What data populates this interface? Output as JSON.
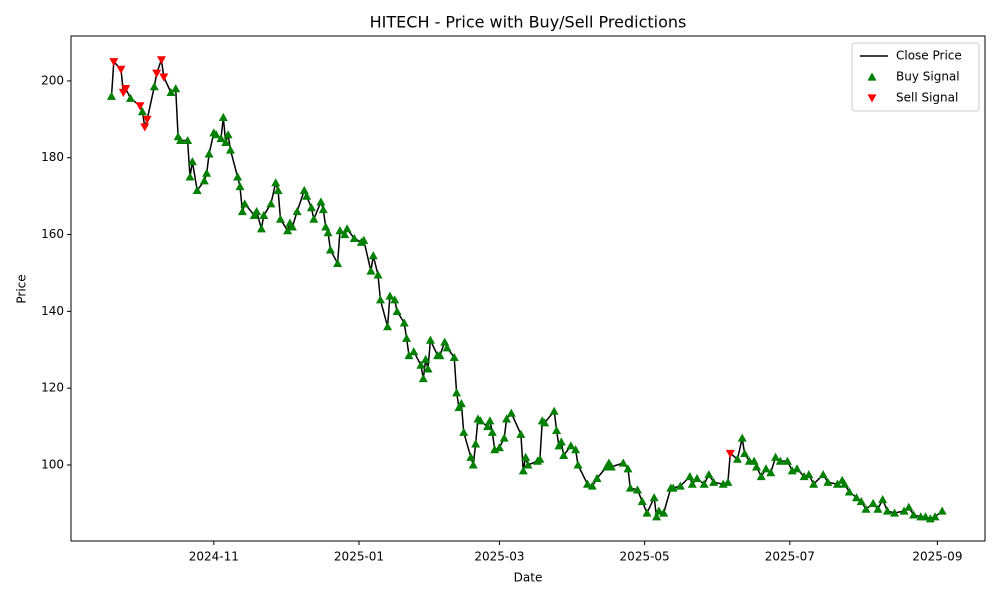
{
  "chart_data": {
    "type": "line",
    "title": "HITECH - Price with Buy/Sell Predictions",
    "x_label": "Date",
    "y_label": "Price",
    "xlim": [
      "2024-09-02",
      "2025-09-21"
    ],
    "ylim": [
      80.2,
      211.7
    ],
    "xticks": [
      {
        "value": "2024-11-01",
        "label": "2024-11"
      },
      {
        "value": "2025-01-01",
        "label": "2025-01"
      },
      {
        "value": "2025-03-01",
        "label": "2025-03"
      },
      {
        "value": "2025-05-01",
        "label": "2025-05"
      },
      {
        "value": "2025-07-01",
        "label": "2025-07"
      },
      {
        "value": "2025-09-01",
        "label": "2025-09"
      }
    ],
    "yticks": [
      100,
      120,
      140,
      160,
      180,
      200
    ],
    "grid": false,
    "legend": "upper right",
    "series": [
      {
        "name": "Close Price",
        "type": "line",
        "color": "#000000",
        "x": [
          "2024-09-19",
          "2024-09-20",
          "2024-09-23",
          "2024-09-24",
          "2024-09-25",
          "2024-09-27",
          "2024-10-01",
          "2024-10-02",
          "2024-10-03",
          "2024-10-04",
          "2024-10-07",
          "2024-10-08",
          "2024-10-10",
          "2024-10-11",
          "2024-10-14",
          "2024-10-16",
          "2024-10-17",
          "2024-10-18",
          "2024-10-21",
          "2024-10-22",
          "2024-10-23",
          "2024-10-25",
          "2024-10-28",
          "2024-10-29",
          "2024-10-30",
          "2024-11-01",
          "2024-11-02",
          "2024-11-04",
          "2024-11-05",
          "2024-11-06",
          "2024-11-07",
          "2024-11-08",
          "2024-11-11",
          "2024-11-12",
          "2024-11-13",
          "2024-11-14",
          "2024-11-18",
          "2024-11-19",
          "2024-11-21",
          "2024-11-22",
          "2024-11-25",
          "2024-11-27",
          "2024-11-28",
          "2024-11-29",
          "2024-12-02",
          "2024-12-03",
          "2024-12-04",
          "2024-12-06",
          "2024-12-09",
          "2024-12-10",
          "2024-12-12",
          "2024-12-13",
          "2024-12-16",
          "2024-12-17",
          "2024-12-18",
          "2024-12-19",
          "2024-12-20",
          "2024-12-23",
          "2024-12-24",
          "2024-12-26",
          "2024-12-27",
          "2024-12-30",
          "2025-01-02",
          "2025-01-03",
          "2025-01-06",
          "2025-01-07",
          "2025-01-09",
          "2025-01-10",
          "2025-01-13",
          "2025-01-14",
          "2025-01-16",
          "2025-01-17",
          "2025-01-20",
          "2025-01-21",
          "2025-01-22",
          "2025-01-24",
          "2025-01-27",
          "2025-01-28",
          "2025-01-29",
          "2025-01-30",
          "2025-01-31",
          "2025-02-03",
          "2025-02-04",
          "2025-02-06",
          "2025-02-07",
          "2025-02-10",
          "2025-02-11",
          "2025-02-12",
          "2025-02-13",
          "2025-02-14",
          "2025-02-17",
          "2025-02-18",
          "2025-02-19",
          "2025-02-20",
          "2025-02-21",
          "2025-02-24",
          "2025-02-25",
          "2025-02-26",
          "2025-02-27",
          "2025-03-01",
          "2025-03-03",
          "2025-03-04",
          "2025-03-06",
          "2025-03-10",
          "2025-03-11",
          "2025-03-12",
          "2025-03-13",
          "2025-03-17",
          "2025-03-18",
          "2025-03-19",
          "2025-03-20",
          "2025-03-24",
          "2025-03-25",
          "2025-03-26",
          "2025-03-27",
          "2025-03-28",
          "2025-03-31",
          "2025-04-02",
          "2025-04-03",
          "2025-04-07",
          "2025-04-09",
          "2025-04-11",
          "2025-04-15",
          "2025-04-16",
          "2025-04-17",
          "2025-04-22",
          "2025-04-24",
          "2025-04-25",
          "2025-04-28",
          "2025-04-30",
          "2025-05-02",
          "2025-05-05",
          "2025-05-06",
          "2025-05-07",
          "2025-05-09",
          "2025-05-12",
          "2025-05-13",
          "2025-05-16",
          "2025-05-20",
          "2025-05-21",
          "2025-05-23",
          "2025-05-26",
          "2025-05-28",
          "2025-05-30",
          "2025-06-03",
          "2025-06-05",
          "2025-06-06",
          "2025-06-09",
          "2025-06-11",
          "2025-06-12",
          "2025-06-14",
          "2025-06-16",
          "2025-06-17",
          "2025-06-19",
          "2025-06-21",
          "2025-06-23",
          "2025-06-25",
          "2025-06-27",
          "2025-06-30",
          "2025-07-02",
          "2025-07-04",
          "2025-07-07",
          "2025-07-09",
          "2025-07-11",
          "2025-07-15",
          "2025-07-17",
          "2025-07-21",
          "2025-07-23",
          "2025-07-24",
          "2025-07-26",
          "2025-07-29",
          "2025-07-31",
          "2025-08-02",
          "2025-08-05",
          "2025-08-07",
          "2025-08-09",
          "2025-08-11",
          "2025-08-14",
          "2025-08-18",
          "2025-08-20",
          "2025-08-22",
          "2025-08-25",
          "2025-08-27",
          "2025-08-29",
          "2025-08-31",
          "2025-09-03"
        ],
        "values": [
          196,
          205,
          203,
          197,
          198,
          195.5,
          193.5,
          192,
          188,
          190,
          198.5,
          202,
          205.5,
          201,
          197,
          198,
          185.5,
          184.5,
          184.5,
          175,
          179,
          171.5,
          174,
          176,
          181,
          186.5,
          186,
          185,
          190.5,
          184,
          186,
          182,
          175,
          172.5,
          166,
          168,
          165,
          166,
          161.5,
          165,
          168,
          173.5,
          171.5,
          164,
          161,
          163,
          162,
          166,
          171.5,
          170,
          167,
          164,
          168.5,
          166.5,
          162,
          160.5,
          156,
          152.5,
          161,
          160,
          161.5,
          159,
          158,
          158.5,
          150.5,
          154.5,
          149.5,
          143,
          136,
          144,
          143,
          140,
          137,
          133,
          128.5,
          129.5,
          126,
          122.5,
          127.5,
          125,
          132.5,
          128.5,
          128.5,
          132,
          130.5,
          128,
          118.8,
          115,
          116,
          108.5,
          102,
          100,
          105.5,
          112,
          111.5,
          110,
          111.5,
          108.5,
          104,
          104.5,
          107,
          112,
          113.5,
          108,
          98.5,
          102,
          100,
          101,
          101.5,
          111.5,
          111,
          114,
          109,
          105,
          106,
          102.5,
          105,
          104,
          100,
          95,
          94.5,
          96.5,
          99.5,
          100.5,
          99.5,
          100.5,
          99,
          94,
          93.5,
          90.5,
          87.5,
          91.5,
          86.5,
          88,
          87.5,
          94,
          94,
          94.5,
          97,
          95,
          96.5,
          95,
          97.5,
          95.5,
          95,
          95.5,
          103,
          101.5,
          107,
          103,
          101,
          101,
          99.5,
          97,
          99,
          98,
          102,
          101,
          101,
          98.5,
          99,
          97,
          97.5,
          95,
          97.5,
          95.5,
          95,
          96,
          95,
          93,
          91.5,
          90.5,
          88.5,
          90,
          88.5,
          91,
          88,
          87.5,
          88,
          89,
          87,
          86.5,
          86.5,
          86,
          86.5,
          88
        ]
      },
      {
        "name": "Buy Signal",
        "type": "scatter",
        "marker": "triangle-up",
        "color": "#008000",
        "x": [
          "2024-09-19",
          "2024-09-27",
          "2024-10-02",
          "2024-10-07",
          "2024-10-14",
          "2024-10-16",
          "2024-10-17",
          "2024-10-18",
          "2024-10-21",
          "2024-10-22",
          "2024-10-23",
          "2024-10-25",
          "2024-10-28",
          "2024-10-29",
          "2024-10-30",
          "2024-11-01",
          "2024-11-02",
          "2024-11-04",
          "2024-11-05",
          "2024-11-06",
          "2024-11-07",
          "2024-11-08",
          "2024-11-11",
          "2024-11-12",
          "2024-11-13",
          "2024-11-14",
          "2024-11-18",
          "2024-11-19",
          "2024-11-21",
          "2024-11-22",
          "2024-11-25",
          "2024-11-27",
          "2024-11-28",
          "2024-11-29",
          "2024-12-02",
          "2024-12-03",
          "2024-12-04",
          "2024-12-06",
          "2024-12-09",
          "2024-12-10",
          "2024-12-12",
          "2024-12-13",
          "2024-12-16",
          "2024-12-17",
          "2024-12-18",
          "2024-12-19",
          "2024-12-20",
          "2024-12-23",
          "2024-12-24",
          "2024-12-26",
          "2024-12-27",
          "2024-12-30",
          "2025-01-02",
          "2025-01-03",
          "2025-01-06",
          "2025-01-07",
          "2025-01-09",
          "2025-01-10",
          "2025-01-13",
          "2025-01-14",
          "2025-01-16",
          "2025-01-17",
          "2025-01-20",
          "2025-01-21",
          "2025-01-22",
          "2025-01-24",
          "2025-01-27",
          "2025-01-28",
          "2025-01-29",
          "2025-01-30",
          "2025-01-31",
          "2025-02-03",
          "2025-02-04",
          "2025-02-06",
          "2025-02-07",
          "2025-02-10",
          "2025-02-11",
          "2025-02-12",
          "2025-02-13",
          "2025-02-14",
          "2025-02-17",
          "2025-02-18",
          "2025-02-19",
          "2025-02-20",
          "2025-02-21",
          "2025-02-24",
          "2025-02-25",
          "2025-02-26",
          "2025-02-27",
          "2025-03-01",
          "2025-03-03",
          "2025-03-04",
          "2025-03-06",
          "2025-03-10",
          "2025-03-11",
          "2025-03-12",
          "2025-03-13",
          "2025-03-17",
          "2025-03-18",
          "2025-03-19",
          "2025-03-20",
          "2025-03-24",
          "2025-03-25",
          "2025-03-26",
          "2025-03-27",
          "2025-03-28",
          "2025-03-31",
          "2025-04-02",
          "2025-04-03",
          "2025-04-07",
          "2025-04-09",
          "2025-04-11",
          "2025-04-15",
          "2025-04-16",
          "2025-04-17",
          "2025-04-22",
          "2025-04-24",
          "2025-04-25",
          "2025-04-28",
          "2025-04-30",
          "2025-05-02",
          "2025-05-05",
          "2025-05-06",
          "2025-05-07",
          "2025-05-09",
          "2025-05-12",
          "2025-05-13",
          "2025-05-16",
          "2025-05-20",
          "2025-05-21",
          "2025-05-23",
          "2025-05-26",
          "2025-05-28",
          "2025-05-30",
          "2025-06-03",
          "2025-06-05",
          "2025-06-09",
          "2025-06-11",
          "2025-06-12",
          "2025-06-14",
          "2025-06-16",
          "2025-06-17",
          "2025-06-19",
          "2025-06-21",
          "2025-06-23",
          "2025-06-25",
          "2025-06-27",
          "2025-06-30",
          "2025-07-02",
          "2025-07-04",
          "2025-07-07",
          "2025-07-09",
          "2025-07-11",
          "2025-07-15",
          "2025-07-17",
          "2025-07-21",
          "2025-07-23",
          "2025-07-24",
          "2025-07-26",
          "2025-07-29",
          "2025-07-31",
          "2025-08-02",
          "2025-08-05",
          "2025-08-07",
          "2025-08-09",
          "2025-08-11",
          "2025-08-14",
          "2025-08-18",
          "2025-08-20",
          "2025-08-22",
          "2025-08-25",
          "2025-08-27",
          "2025-08-29",
          "2025-08-31",
          "2025-09-03"
        ],
        "values": [
          196,
          195.5,
          192,
          198.5,
          197,
          198,
          185.5,
          184.5,
          184.5,
          175,
          179,
          171.5,
          174,
          176,
          181,
          186.5,
          186,
          185,
          190.5,
          184,
          186,
          182,
          175,
          172.5,
          166,
          168,
          165,
          166,
          161.5,
          165,
          168,
          173.5,
          171.5,
          164,
          161,
          163,
          162,
          166,
          171.5,
          170,
          167,
          164,
          168.5,
          166.5,
          162,
          160.5,
          156,
          152.5,
          161,
          160,
          161.5,
          159,
          158,
          158.5,
          150.5,
          154.5,
          149.5,
          143,
          136,
          144,
          143,
          140,
          137,
          133,
          128.5,
          129.5,
          126,
          122.5,
          127.5,
          125,
          132.5,
          128.5,
          128.5,
          132,
          130.5,
          128,
          118.8,
          115,
          116,
          108.5,
          102,
          100,
          105.5,
          112,
          111.5,
          110,
          111.5,
          108.5,
          104,
          104.5,
          107,
          112,
          113.5,
          108,
          98.5,
          102,
          100,
          101,
          101.5,
          111.5,
          111,
          114,
          109,
          105,
          106,
          102.5,
          105,
          104,
          100,
          95,
          94.5,
          96.5,
          99.5,
          100.5,
          99.5,
          100.5,
          99,
          94,
          93.5,
          90.5,
          87.5,
          91.5,
          86.5,
          88,
          87.5,
          94,
          94,
          94.5,
          97,
          95,
          96.5,
          95,
          97.5,
          95.5,
          95,
          95.5,
          101.5,
          107,
          103,
          101,
          101,
          99.5,
          97,
          99,
          98,
          102,
          101,
          101,
          98.5,
          99,
          97,
          97.5,
          95,
          97.5,
          95.5,
          95,
          96,
          95,
          93,
          91.5,
          90.5,
          88.5,
          90,
          88.5,
          91,
          88,
          87.5,
          88,
          89,
          87,
          86.5,
          86.5,
          86,
          86.5,
          88
        ]
      },
      {
        "name": "Sell Signal",
        "type": "scatter",
        "marker": "triangle-down",
        "color": "#ff0000",
        "x": [
          "2024-09-20",
          "2024-09-23",
          "2024-09-24",
          "2024-09-25",
          "2024-10-01",
          "2024-10-03",
          "2024-10-04",
          "2024-10-08",
          "2024-10-10",
          "2024-10-11",
          "2025-06-06"
        ],
        "values": [
          205,
          203,
          197,
          198,
          193.5,
          188,
          190,
          202,
          205.5,
          201,
          103
        ]
      }
    ]
  }
}
